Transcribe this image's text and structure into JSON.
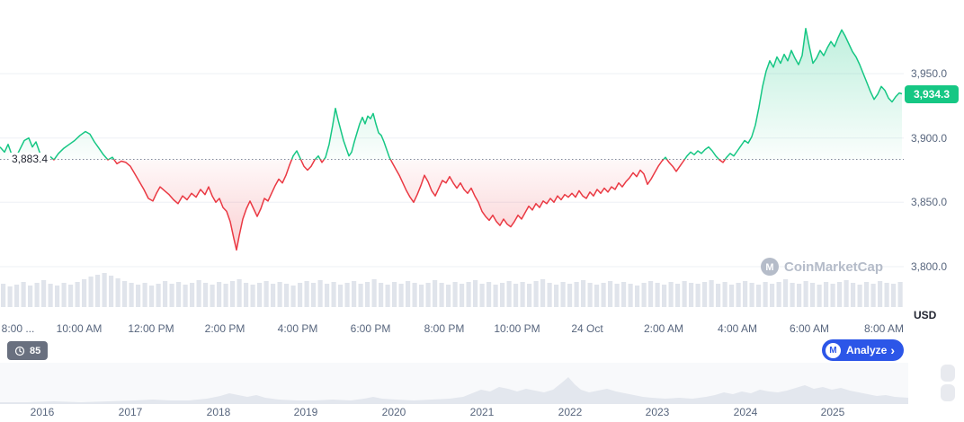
{
  "y_axis": {
    "ticks": [
      "3,950.0",
      "3,900.0",
      "3,850.0",
      "3,800.0"
    ],
    "unit": "USD"
  },
  "price_badge": {
    "value": "3,934.3"
  },
  "baseline_label": "3,883.4",
  "x_axis": {
    "labels": [
      "8:00 ...",
      "10:00 AM",
      "12:00 PM",
      "2:00 PM",
      "4:00 PM",
      "6:00 PM",
      "8:00 PM",
      "10:00 PM",
      "24 Oct",
      "2:00 AM",
      "4:00 AM",
      "6:00 AM",
      "8:00 AM"
    ],
    "xs": [
      20,
      88,
      168,
      250,
      331,
      412,
      494,
      575,
      653,
      738,
      820,
      900,
      983
    ]
  },
  "watermark": {
    "text": "CoinMarketCap",
    "logo_glyph": "M"
  },
  "insights_badge": {
    "count": "85"
  },
  "analyze_button": {
    "label": "Analyze",
    "chevron": "›",
    "logo_glyph": "M"
  },
  "year_axis": {
    "labels": [
      "2016",
      "2017",
      "2018",
      "2019",
      "2020",
      "2021",
      "2022",
      "2023",
      "2024",
      "2025"
    ],
    "xs": [
      47,
      145,
      243,
      340,
      438,
      536,
      634,
      731,
      829,
      926
    ]
  },
  "chart_data": {
    "type": "line",
    "unit": "USD",
    "baseline": 3883.4,
    "current": 3934.3,
    "y_ticks": [
      3950,
      3900,
      3850,
      3800
    ],
    "x_tick_labels": [
      "8:00 ...",
      "10:00 AM",
      "12:00 PM",
      "2:00 PM",
      "4:00 PM",
      "6:00 PM",
      "8:00 PM",
      "10:00 PM",
      "24 Oct",
      "2:00 AM",
      "4:00 AM",
      "6:00 AM",
      "8:00 AM"
    ],
    "colors": {
      "up": "#16c784",
      "down": "#ea3943",
      "volume": "#e0e4eb",
      "grid": "#eef0f5"
    },
    "y_scale": {
      "p1": 3950,
      "y1": 82,
      "p2": 3800,
      "y2": 297
    },
    "points": [
      [
        0,
        3893
      ],
      [
        5,
        3889
      ],
      [
        9,
        3895
      ],
      [
        13,
        3887
      ],
      [
        17,
        3884
      ],
      [
        22,
        3891
      ],
      [
        27,
        3898
      ],
      [
        32,
        3900
      ],
      [
        36,
        3893
      ],
      [
        40,
        3897
      ],
      [
        45,
        3887
      ],
      [
        50,
        3884
      ],
      [
        55,
        3886
      ],
      [
        60,
        3883
      ],
      [
        65,
        3888
      ],
      [
        71,
        3892
      ],
      [
        77,
        3895
      ],
      [
        83,
        3898
      ],
      [
        89,
        3902
      ],
      [
        95,
        3905
      ],
      [
        100,
        3903
      ],
      [
        105,
        3897
      ],
      [
        110,
        3892
      ],
      [
        115,
        3887
      ],
      [
        120,
        3883
      ],
      [
        125,
        3885
      ],
      [
        130,
        3880
      ],
      [
        135,
        3882
      ],
      [
        140,
        3881
      ],
      [
        145,
        3878
      ],
      [
        150,
        3872
      ],
      [
        155,
        3866
      ],
      [
        160,
        3860
      ],
      [
        165,
        3853
      ],
      [
        170,
        3851
      ],
      [
        174,
        3857
      ],
      [
        178,
        3862
      ],
      [
        183,
        3859
      ],
      [
        188,
        3856
      ],
      [
        193,
        3852
      ],
      [
        198,
        3849
      ],
      [
        203,
        3855
      ],
      [
        208,
        3852
      ],
      [
        213,
        3857
      ],
      [
        218,
        3854
      ],
      [
        223,
        3860
      ],
      [
        228,
        3856
      ],
      [
        232,
        3862
      ],
      [
        236,
        3855
      ],
      [
        240,
        3850
      ],
      [
        244,
        3853
      ],
      [
        248,
        3846
      ],
      [
        252,
        3843
      ],
      [
        256,
        3835
      ],
      [
        260,
        3822
      ],
      [
        263,
        3813
      ],
      [
        266,
        3824
      ],
      [
        270,
        3837
      ],
      [
        274,
        3845
      ],
      [
        278,
        3851
      ],
      [
        282,
        3845
      ],
      [
        286,
        3839
      ],
      [
        290,
        3845
      ],
      [
        294,
        3853
      ],
      [
        298,
        3851
      ],
      [
        302,
        3857
      ],
      [
        306,
        3863
      ],
      [
        310,
        3868
      ],
      [
        314,
        3865
      ],
      [
        318,
        3871
      ],
      [
        322,
        3879
      ],
      [
        326,
        3886
      ],
      [
        330,
        3890
      ],
      [
        334,
        3884
      ],
      [
        338,
        3878
      ],
      [
        342,
        3875
      ],
      [
        346,
        3878
      ],
      [
        350,
        3883
      ],
      [
        354,
        3886
      ],
      [
        358,
        3881
      ],
      [
        362,
        3885
      ],
      [
        366,
        3895
      ],
      [
        370,
        3910
      ],
      [
        373,
        3923
      ],
      [
        376,
        3914
      ],
      [
        379,
        3906
      ],
      [
        382,
        3898
      ],
      [
        385,
        3892
      ],
      [
        388,
        3886
      ],
      [
        391,
        3889
      ],
      [
        394,
        3897
      ],
      [
        397,
        3904
      ],
      [
        400,
        3911
      ],
      [
        403,
        3916
      ],
      [
        406,
        3911
      ],
      [
        409,
        3917
      ],
      [
        412,
        3915
      ],
      [
        415,
        3919
      ],
      [
        418,
        3911
      ],
      [
        421,
        3904
      ],
      [
        424,
        3902
      ],
      [
        427,
        3897
      ],
      [
        430,
        3891
      ],
      [
        433,
        3885
      ],
      [
        436,
        3881
      ],
      [
        440,
        3876
      ],
      [
        444,
        3871
      ],
      [
        448,
        3865
      ],
      [
        452,
        3859
      ],
      [
        456,
        3854
      ],
      [
        460,
        3850
      ],
      [
        464,
        3856
      ],
      [
        468,
        3863
      ],
      [
        472,
        3871
      ],
      [
        476,
        3866
      ],
      [
        480,
        3859
      ],
      [
        484,
        3855
      ],
      [
        488,
        3861
      ],
      [
        492,
        3867
      ],
      [
        496,
        3865
      ],
      [
        500,
        3870
      ],
      [
        504,
        3865
      ],
      [
        508,
        3861
      ],
      [
        512,
        3865
      ],
      [
        516,
        3860
      ],
      [
        520,
        3857
      ],
      [
        524,
        3861
      ],
      [
        528,
        3855
      ],
      [
        532,
        3850
      ],
      [
        536,
        3843
      ],
      [
        540,
        3839
      ],
      [
        544,
        3836
      ],
      [
        548,
        3840
      ],
      [
        552,
        3835
      ],
      [
        556,
        3832
      ],
      [
        560,
        3837
      ],
      [
        564,
        3833
      ],
      [
        568,
        3831
      ],
      [
        572,
        3835
      ],
      [
        576,
        3840
      ],
      [
        580,
        3837
      ],
      [
        584,
        3842
      ],
      [
        588,
        3847
      ],
      [
        592,
        3844
      ],
      [
        596,
        3849
      ],
      [
        600,
        3846
      ],
      [
        604,
        3851
      ],
      [
        608,
        3849
      ],
      [
        612,
        3853
      ],
      [
        616,
        3850
      ],
      [
        620,
        3855
      ],
      [
        624,
        3852
      ],
      [
        628,
        3856
      ],
      [
        632,
        3854
      ],
      [
        636,
        3857
      ],
      [
        640,
        3854
      ],
      [
        644,
        3859
      ],
      [
        648,
        3855
      ],
      [
        652,
        3853
      ],
      [
        656,
        3858
      ],
      [
        660,
        3855
      ],
      [
        664,
        3860
      ],
      [
        668,
        3857
      ],
      [
        672,
        3861
      ],
      [
        676,
        3858
      ],
      [
        680,
        3862
      ],
      [
        684,
        3860
      ],
      [
        688,
        3865
      ],
      [
        692,
        3862
      ],
      [
        696,
        3866
      ],
      [
        700,
        3869
      ],
      [
        704,
        3873
      ],
      [
        708,
        3870
      ],
      [
        712,
        3875
      ],
      [
        716,
        3872
      ],
      [
        720,
        3864
      ],
      [
        724,
        3868
      ],
      [
        728,
        3873
      ],
      [
        732,
        3878
      ],
      [
        736,
        3882
      ],
      [
        740,
        3885
      ],
      [
        744,
        3881
      ],
      [
        748,
        3878
      ],
      [
        752,
        3874
      ],
      [
        756,
        3878
      ],
      [
        760,
        3882
      ],
      [
        764,
        3886
      ],
      [
        768,
        3889
      ],
      [
        772,
        3887
      ],
      [
        776,
        3890
      ],
      [
        780,
        3888
      ],
      [
        784,
        3891
      ],
      [
        788,
        3893
      ],
      [
        792,
        3890
      ],
      [
        796,
        3886
      ],
      [
        800,
        3883
      ],
      [
        804,
        3881
      ],
      [
        808,
        3885
      ],
      [
        812,
        3888
      ],
      [
        816,
        3886
      ],
      [
        820,
        3890
      ],
      [
        824,
        3894
      ],
      [
        828,
        3898
      ],
      [
        832,
        3896
      ],
      [
        836,
        3901
      ],
      [
        840,
        3910
      ],
      [
        844,
        3924
      ],
      [
        848,
        3940
      ],
      [
        852,
        3952
      ],
      [
        856,
        3960
      ],
      [
        860,
        3955
      ],
      [
        864,
        3963
      ],
      [
        868,
        3958
      ],
      [
        872,
        3965
      ],
      [
        876,
        3960
      ],
      [
        880,
        3968
      ],
      [
        884,
        3962
      ],
      [
        888,
        3957
      ],
      [
        892,
        3964
      ],
      [
        896,
        3985
      ],
      [
        900,
        3971
      ],
      [
        904,
        3958
      ],
      [
        908,
        3962
      ],
      [
        912,
        3968
      ],
      [
        916,
        3964
      ],
      [
        920,
        3970
      ],
      [
        924,
        3975
      ],
      [
        928,
        3971
      ],
      [
        932,
        3978
      ],
      [
        936,
        3984
      ],
      [
        940,
        3979
      ],
      [
        944,
        3973
      ],
      [
        948,
        3967
      ],
      [
        952,
        3963
      ],
      [
        956,
        3957
      ],
      [
        960,
        3950
      ],
      [
        964,
        3943
      ],
      [
        968,
        3936
      ],
      [
        972,
        3930
      ],
      [
        976,
        3934
      ],
      [
        980,
        3940
      ],
      [
        984,
        3937
      ],
      [
        988,
        3931
      ],
      [
        992,
        3928
      ],
      [
        996,
        3932
      ],
      [
        1000,
        3935
      ],
      [
        1003,
        3934.3
      ]
    ],
    "volume": [
      26,
      23,
      25,
      28,
      24,
      27,
      30,
      26,
      24,
      27,
      25,
      28,
      31,
      34,
      36,
      38,
      35,
      32,
      29,
      27,
      25,
      27,
      24,
      26,
      29,
      26,
      28,
      25,
      27,
      30,
      27,
      25,
      28,
      26,
      29,
      31,
      27,
      25,
      27,
      29,
      26,
      28,
      26,
      24,
      27,
      29,
      27,
      30,
      26,
      28,
      25,
      27,
      29,
      26,
      28,
      31,
      27,
      25,
      28,
      26,
      29,
      27,
      25,
      27,
      30,
      27,
      25,
      28,
      26,
      28,
      30,
      26,
      28,
      25,
      27,
      29,
      26,
      28,
      26,
      29,
      31,
      27,
      25,
      28,
      26,
      28,
      30,
      27,
      25,
      27,
      29,
      26,
      28,
      26,
      24,
      27,
      29,
      27,
      25,
      28,
      26,
      29,
      27,
      26,
      28,
      30,
      26,
      28,
      25,
      27,
      29,
      27,
      25,
      28,
      26,
      28,
      31,
      27,
      26,
      29,
      27,
      25,
      28,
      26,
      28,
      30,
      27,
      25,
      28,
      26,
      29,
      27,
      26,
      28
    ],
    "navigator": {
      "points": [
        [
          0,
          2
        ],
        [
          30,
          2
        ],
        [
          60,
          3
        ],
        [
          90,
          2
        ],
        [
          120,
          3
        ],
        [
          150,
          4
        ],
        [
          170,
          5
        ],
        [
          190,
          4
        ],
        [
          210,
          4
        ],
        [
          230,
          6
        ],
        [
          245,
          9
        ],
        [
          255,
          12
        ],
        [
          265,
          10
        ],
        [
          275,
          8
        ],
        [
          285,
          10
        ],
        [
          295,
          7
        ],
        [
          310,
          5
        ],
        [
          330,
          4
        ],
        [
          350,
          4
        ],
        [
          370,
          5
        ],
        [
          390,
          4
        ],
        [
          405,
          6
        ],
        [
          415,
          8
        ],
        [
          425,
          6
        ],
        [
          440,
          5
        ],
        [
          460,
          4
        ],
        [
          480,
          5
        ],
        [
          500,
          6
        ],
        [
          515,
          8
        ],
        [
          525,
          12
        ],
        [
          535,
          16
        ],
        [
          545,
          14
        ],
        [
          555,
          19
        ],
        [
          565,
          17
        ],
        [
          575,
          14
        ],
        [
          585,
          17
        ],
        [
          595,
          15
        ],
        [
          605,
          13
        ],
        [
          615,
          16
        ],
        [
          625,
          24
        ],
        [
          632,
          30
        ],
        [
          639,
          22
        ],
        [
          646,
          16
        ],
        [
          655,
          13
        ],
        [
          665,
          15
        ],
        [
          675,
          17
        ],
        [
          685,
          14
        ],
        [
          695,
          12
        ],
        [
          705,
          10
        ],
        [
          715,
          8
        ],
        [
          725,
          7
        ],
        [
          740,
          6
        ],
        [
          755,
          7
        ],
        [
          770,
          6
        ],
        [
          785,
          8
        ],
        [
          795,
          10
        ],
        [
          805,
          13
        ],
        [
          815,
          11
        ],
        [
          825,
          14
        ],
        [
          835,
          12
        ],
        [
          845,
          16
        ],
        [
          855,
          14
        ],
        [
          865,
          13
        ],
        [
          875,
          15
        ],
        [
          885,
          18
        ],
        [
          895,
          21
        ],
        [
          905,
          17
        ],
        [
          915,
          19
        ],
        [
          925,
          16
        ],
        [
          935,
          18
        ],
        [
          945,
          15
        ],
        [
          955,
          13
        ],
        [
          965,
          11
        ],
        [
          975,
          9
        ],
        [
          985,
          10
        ],
        [
          995,
          8
        ],
        [
          1010,
          7
        ]
      ]
    }
  }
}
